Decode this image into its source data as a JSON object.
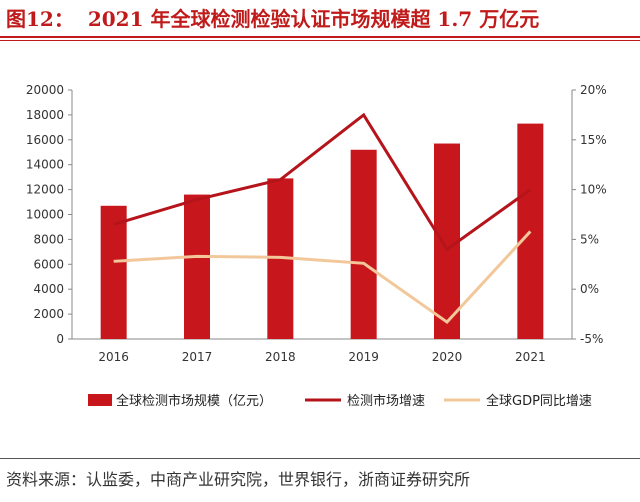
{
  "header": {
    "figure_label": "图12：",
    "title": "2021 年全球检测检验认证市场规模超 1.7 万亿元"
  },
  "source_text": "资料来源：认监委，中商产业研究院，世界银行，浙商证券研究所",
  "colors": {
    "bar": "#c8161d",
    "market_growth_line": "#b5141b",
    "gdp_line": "#f2c799",
    "title": "#c01a1a"
  },
  "chart_data": {
    "type": "bar",
    "categories": [
      "2016",
      "2017",
      "2018",
      "2019",
      "2020",
      "2021"
    ],
    "series": [
      {
        "name": "全球检测市场规模（亿元）",
        "type": "bar",
        "axis": "left",
        "values": [
          10700,
          11600,
          12900,
          15200,
          15700,
          17300
        ]
      },
      {
        "name": "检测市场增速",
        "type": "line",
        "axis": "right",
        "values": [
          6.5,
          9.0,
          11.0,
          17.5,
          4.0,
          10.0
        ]
      },
      {
        "name": "全球GDP同比增速",
        "type": "line",
        "axis": "right",
        "values": [
          2.8,
          3.3,
          3.2,
          2.6,
          -3.3,
          5.8
        ]
      }
    ],
    "left_axis": {
      "ylim": [
        0,
        20000
      ],
      "ticks": [
        "0",
        "2000",
        "4000",
        "6000",
        "8000",
        "10000",
        "12000",
        "14000",
        "16000",
        "18000",
        "20000"
      ]
    },
    "right_axis": {
      "ylim": [
        -5,
        20
      ],
      "ticks": [
        "-5%",
        "0%",
        "5%",
        "10%",
        "15%",
        "20%"
      ]
    },
    "legend_position": "bottom",
    "grid": false
  }
}
